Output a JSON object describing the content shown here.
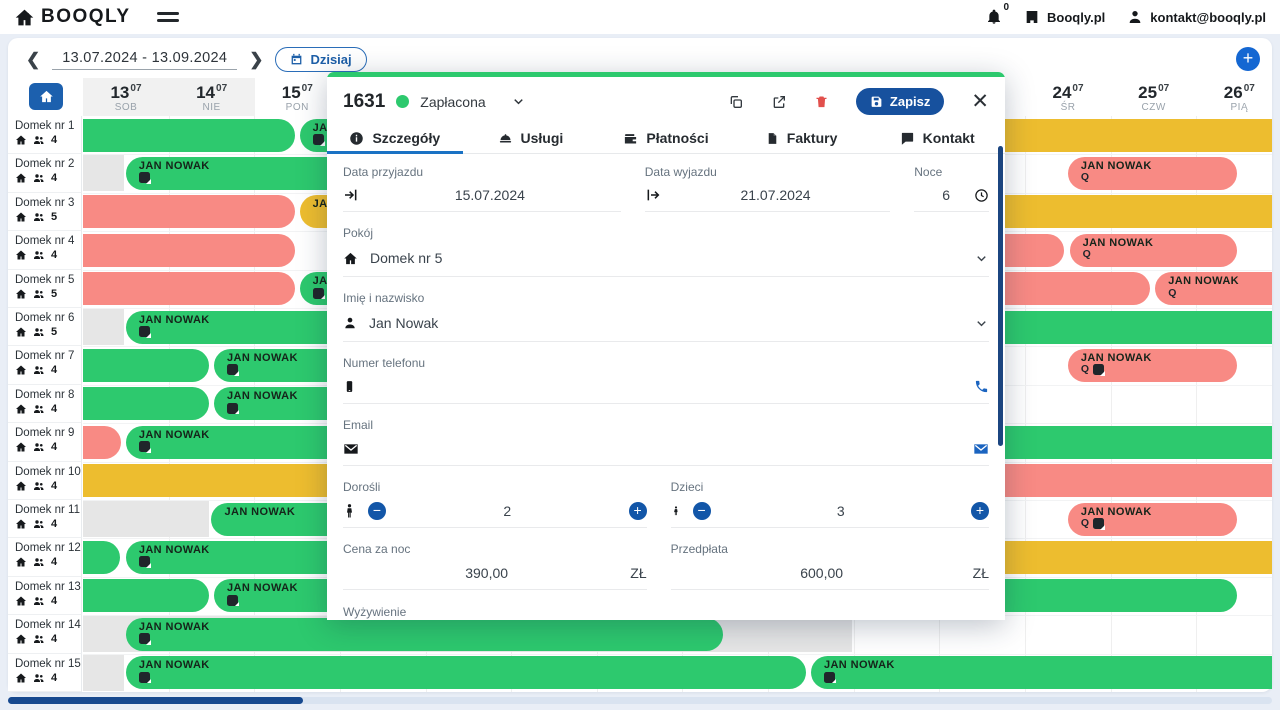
{
  "topbar": {
    "logo": "BOOQLY",
    "bell_count": "0",
    "account": "Booqly.pl",
    "email": "kontakt@booqly.pl"
  },
  "toolbar": {
    "date_range": "13.07.2024 - 13.09.2024",
    "today": "Dzisiaj",
    "add": "+"
  },
  "colors": {
    "green": "#2dc96e",
    "red": "#f88a84",
    "yellow": "#edbd2f",
    "gray": "#e6e6e6",
    "blue": "#1a5fae",
    "navy": "#17498f"
  },
  "calendar": {
    "day_headers": [
      {
        "col": 0,
        "day": "13",
        "month": "07",
        "dow": "SOB",
        "weekend": true
      },
      {
        "col": 1,
        "day": "14",
        "month": "07",
        "dow": "NIE",
        "weekend": true
      },
      {
        "col": 2,
        "day": "15",
        "month": "07",
        "dow": "PON",
        "weekend": false
      },
      {
        "col": 11,
        "day": "24",
        "month": "07",
        "dow": "ŚR",
        "weekend": false
      },
      {
        "col": 12,
        "day": "25",
        "month": "07",
        "dow": "CZW",
        "weekend": false
      },
      {
        "col": 13,
        "day": "26",
        "month": "07",
        "dow": "PIĄ",
        "weekend": false
      }
    ],
    "rooms": [
      {
        "name": "Domek nr 1",
        "capacity": "4"
      },
      {
        "name": "Domek nr 2",
        "capacity": "4"
      },
      {
        "name": "Domek nr 3",
        "capacity": "5"
      },
      {
        "name": "Domek nr 4",
        "capacity": "4"
      },
      {
        "name": "Domek nr 5",
        "capacity": "5"
      },
      {
        "name": "Domek nr 6",
        "capacity": "5"
      },
      {
        "name": "Domek nr 7",
        "capacity": "4"
      },
      {
        "name": "Domek nr 8",
        "capacity": "4"
      },
      {
        "name": "Domek nr 9",
        "capacity": "4"
      },
      {
        "name": "Domek nr 10",
        "capacity": "4"
      },
      {
        "name": "Domek nr 11",
        "capacity": "4"
      },
      {
        "name": "Domek nr 12",
        "capacity": "4"
      },
      {
        "name": "Domek nr 13",
        "capacity": "4"
      },
      {
        "name": "Domek nr 14",
        "capacity": "4"
      },
      {
        "name": "Domek nr 15",
        "capacity": "4"
      }
    ],
    "guest_name": "JAN NOWAK",
    "bars": [
      {
        "row": 0,
        "start": 0,
        "end": 2.5,
        "color": "green",
        "round": "r"
      },
      {
        "row": 0,
        "start": 2.53,
        "end": 6,
        "color": "green",
        "round": "l",
        "label": "JAN NOWAK",
        "icons": [
          "note"
        ]
      },
      {
        "row": 0,
        "start": 9,
        "end": 14,
        "color": "yellow",
        "round": ""
      },
      {
        "row": 1,
        "start": 0,
        "end": 0.5,
        "color": "gray",
        "round": ""
      },
      {
        "row": 1,
        "start": 0.5,
        "end": 6,
        "color": "green",
        "round": "l",
        "label": "JAN NOWAK",
        "icons": [
          "note"
        ]
      },
      {
        "row": 1,
        "start": 11.5,
        "end": 13.5,
        "color": "red",
        "round": "lr",
        "label": "JAN NOWAK",
        "icons": [
          "q"
        ]
      },
      {
        "row": 2,
        "start": 0,
        "end": 2.5,
        "color": "red",
        "round": "r"
      },
      {
        "row": 2,
        "start": 2.53,
        "end": 14,
        "color": "yellow",
        "round": "l",
        "label": "JAN NOWAK"
      },
      {
        "row": 3,
        "start": 0,
        "end": 2.5,
        "color": "red",
        "round": "r"
      },
      {
        "row": 3,
        "start": 9,
        "end": 11.48,
        "color": "red",
        "round": "r"
      },
      {
        "row": 3,
        "start": 11.52,
        "end": 13.5,
        "color": "red",
        "round": "lr",
        "label": "JAN NOWAK",
        "icons": [
          "q"
        ]
      },
      {
        "row": 4,
        "start": 0,
        "end": 2.5,
        "color": "red",
        "round": "r"
      },
      {
        "row": 4,
        "start": 2.53,
        "end": 6,
        "color": "green",
        "round": "l",
        "label": "JAN NOWAK",
        "icons": [
          "note"
        ]
      },
      {
        "row": 4,
        "start": 9,
        "end": 12.48,
        "color": "red",
        "round": "r"
      },
      {
        "row": 4,
        "start": 12.52,
        "end": 14,
        "color": "red",
        "round": "l",
        "label": "JAN NOWAK",
        "icons": [
          "q"
        ]
      },
      {
        "row": 5,
        "start": 0,
        "end": 0.5,
        "color": "gray",
        "round": ""
      },
      {
        "row": 5,
        "start": 0.5,
        "end": 14,
        "color": "green",
        "round": "l",
        "label": "JAN NOWAK",
        "icons": [
          "note"
        ]
      },
      {
        "row": 6,
        "start": 0,
        "end": 1.5,
        "color": "green",
        "round": "r"
      },
      {
        "row": 6,
        "start": 1.53,
        "end": 9,
        "color": "green",
        "round": "l",
        "label": "JAN NOWAK",
        "icons": [
          "note"
        ]
      },
      {
        "row": 6,
        "start": 11.5,
        "end": 13.5,
        "color": "red",
        "round": "lr",
        "label": "JAN NOWAK",
        "icons": [
          "q",
          "note"
        ]
      },
      {
        "row": 7,
        "start": 0,
        "end": 1.5,
        "color": "green",
        "round": "r"
      },
      {
        "row": 7,
        "start": 1.53,
        "end": 9,
        "color": "green",
        "round": "l",
        "label": "JAN NOWAK",
        "icons": [
          "note"
        ]
      },
      {
        "row": 8,
        "start": 0,
        "end": 0.47,
        "color": "red",
        "round": "r"
      },
      {
        "row": 8,
        "start": 0.5,
        "end": 14,
        "color": "green",
        "round": "l",
        "label": "JAN NOWAK",
        "icons": [
          "note"
        ]
      },
      {
        "row": 9,
        "start": 0,
        "end": 7,
        "color": "yellow",
        "round": ""
      },
      {
        "row": 9,
        "start": 7,
        "end": 14,
        "color": "red",
        "round": ""
      },
      {
        "row": 10,
        "start": 0,
        "end": 1.5,
        "color": "gray",
        "round": ""
      },
      {
        "row": 10,
        "start": 1.5,
        "end": 9,
        "color": "green",
        "round": "l",
        "label": "JAN NOWAK"
      },
      {
        "row": 10,
        "start": 11.5,
        "end": 13.5,
        "color": "red",
        "round": "lr",
        "label": "JAN NOWAK",
        "icons": [
          "q",
          "note"
        ]
      },
      {
        "row": 11,
        "start": 0,
        "end": 0.45,
        "color": "green",
        "round": "r"
      },
      {
        "row": 11,
        "start": 0.5,
        "end": 8.5,
        "color": "green",
        "round": "l",
        "label": "JAN NOWAK",
        "icons": [
          "note"
        ]
      },
      {
        "row": 11,
        "start": 9,
        "end": 14,
        "color": "yellow",
        "round": ""
      },
      {
        "row": 12,
        "start": 0,
        "end": 1.5,
        "color": "green",
        "round": "r"
      },
      {
        "row": 12,
        "start": 1.53,
        "end": 13.5,
        "color": "green",
        "round": "lr",
        "label": "JAN NOWAK",
        "icons": [
          "note"
        ]
      },
      {
        "row": 13,
        "start": 0,
        "end": 9,
        "color": "gray",
        "round": ""
      },
      {
        "row": 13,
        "start": 0.5,
        "end": 7.5,
        "color": "green",
        "round": "lr",
        "label": "JAN NOWAK",
        "icons": [
          "note"
        ]
      },
      {
        "row": 14,
        "start": 0,
        "end": 0.5,
        "color": "gray",
        "round": ""
      },
      {
        "row": 14,
        "start": 0.5,
        "end": 8.47,
        "color": "green",
        "round": "lr",
        "label": "JAN NOWAK",
        "icons": [
          "note"
        ]
      },
      {
        "row": 14,
        "start": 8.5,
        "end": 14,
        "color": "green",
        "round": "l",
        "label": "JAN NOWAK",
        "icons": [
          "note"
        ]
      }
    ]
  },
  "modal": {
    "id": "1631",
    "status": "Zapłacona",
    "save": "Zapisz",
    "close": "✕",
    "tabs": [
      "Szczegóły",
      "Usługi",
      "Płatności",
      "Faktury",
      "Kontakt"
    ],
    "fields": {
      "arrival_label": "Data przyjazdu",
      "arrival": "15.07.2024",
      "departure_label": "Data wyjazdu",
      "departure": "21.07.2024",
      "nights_label": "Noce",
      "nights": "6",
      "room_label": "Pokój",
      "room": "Domek nr 5",
      "name_label": "Imię i nazwisko",
      "name": "Jan Nowak",
      "phone_label": "Numer telefonu",
      "phone": "",
      "email_label": "Email",
      "email": "",
      "adults_label": "Dorośli",
      "adults": "2",
      "children_label": "Dzieci",
      "children": "3",
      "price_label": "Cena za noc",
      "price": "390,00",
      "currency": "ZŁ",
      "prepay_label": "Przedpłata",
      "prepay": "600,00",
      "meals_label": "Wyżywienie"
    }
  }
}
